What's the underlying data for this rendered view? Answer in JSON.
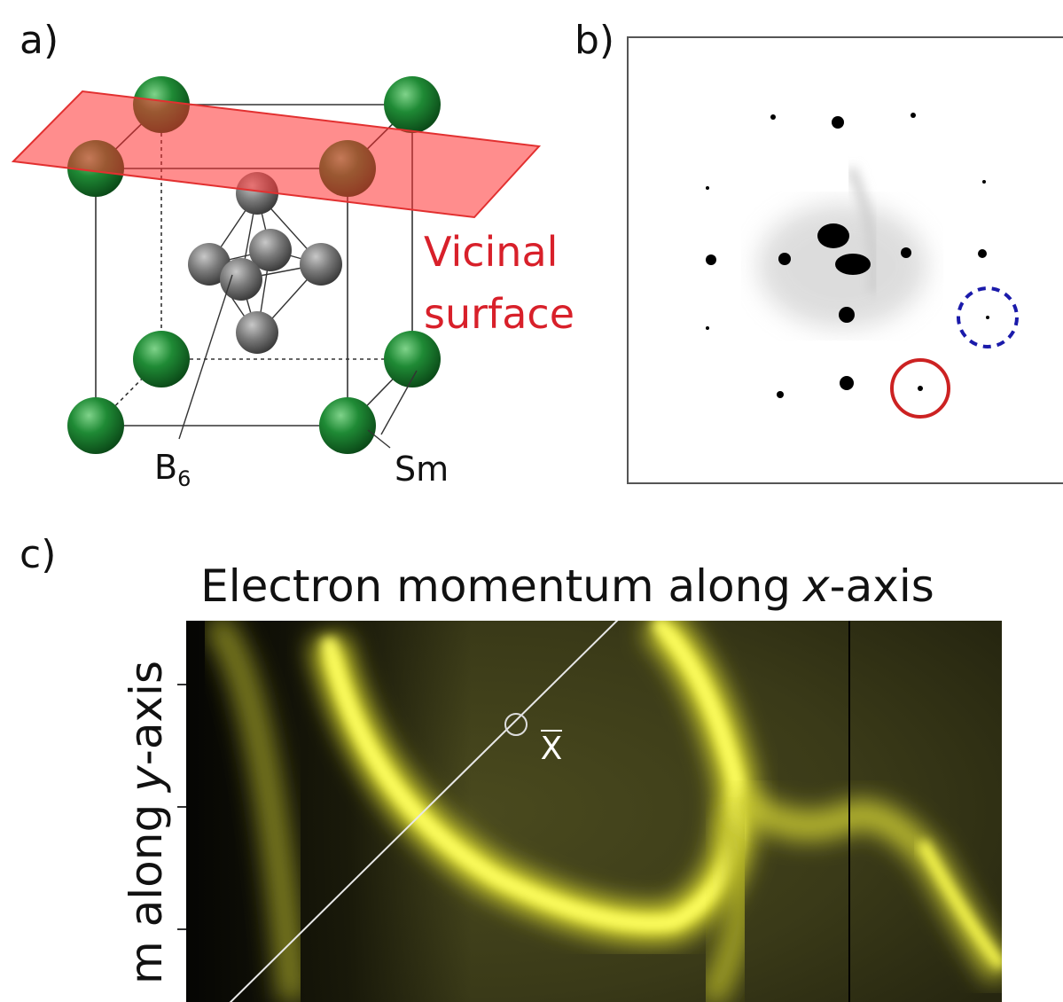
{
  "panel_a": {
    "label": "a)",
    "plane_label": [
      "Vicinal",
      "surface"
    ],
    "b6_label": [
      "B",
      "6"
    ],
    "sm_label": "Sm"
  },
  "panel_b": {
    "label": "b)"
  },
  "panel_c": {
    "label": "c)",
    "title": [
      "Electron momentum along",
      "x",
      "-axis"
    ],
    "y_label": [
      "m along",
      "y",
      "-axis"
    ],
    "point_label": "X"
  }
}
